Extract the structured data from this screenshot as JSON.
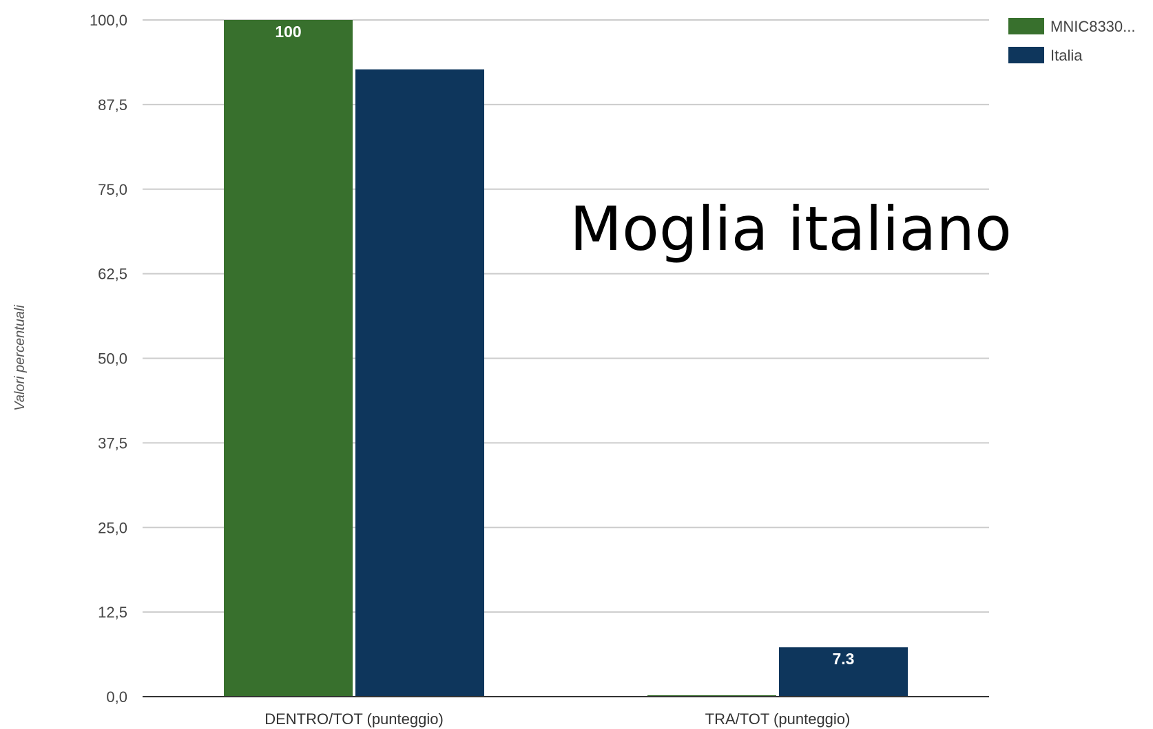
{
  "overlay_text": "Moglia italiano",
  "chart_data": {
    "type": "bar",
    "categories": [
      "DENTRO/TOT (punteggio)",
      "TRA/TOT (punteggio)"
    ],
    "series": [
      {
        "name": "MNIC8330...",
        "color": "#38702d",
        "values": [
          100,
          0
        ]
      },
      {
        "name": "Italia",
        "color": "#0e365c",
        "values": [
          92.7,
          7.3
        ]
      }
    ],
    "data_labels": [
      [
        "100",
        null
      ],
      [
        "92.7",
        "7.3"
      ]
    ],
    "yticks": [
      "0,0",
      "12,5",
      "25,0",
      "37,5",
      "50,0",
      "62,5",
      "75,0",
      "87,5",
      "100,0"
    ],
    "ylim": [
      0,
      100
    ],
    "ylabel": "Valori percentuali",
    "xlabel": "",
    "grid": true,
    "legend": "top-right"
  }
}
